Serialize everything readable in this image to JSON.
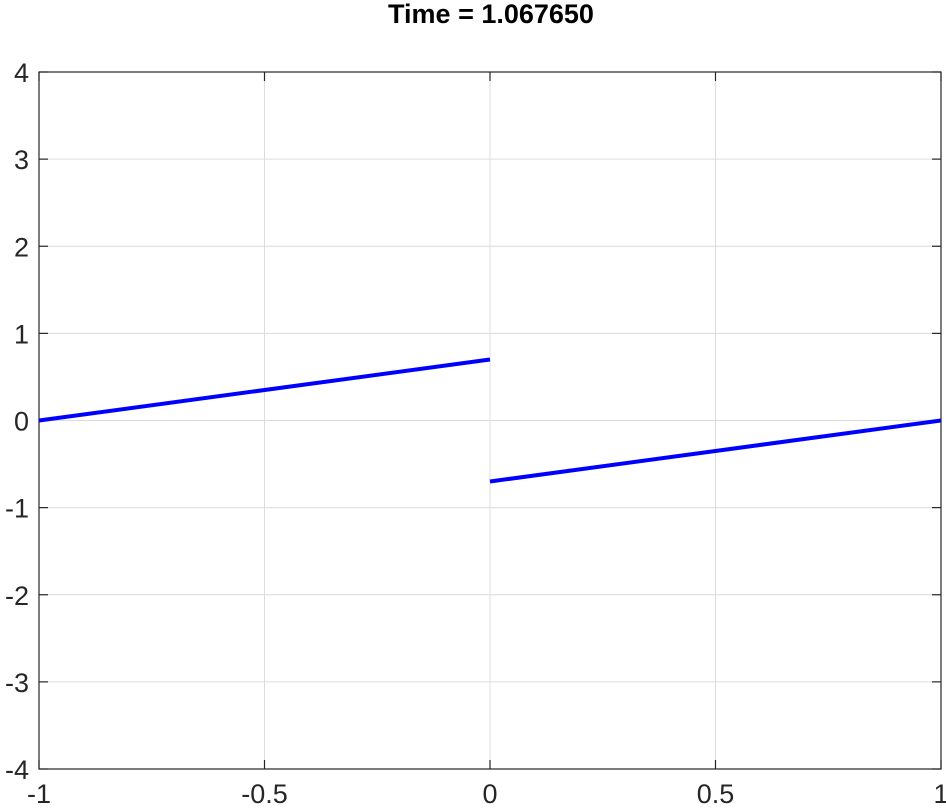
{
  "chart_data": {
    "type": "line",
    "title": "Time = 1.067650",
    "xlabel": "",
    "ylabel": "",
    "xlim": [
      -1,
      1
    ],
    "ylim": [
      -4,
      4
    ],
    "xticks": [
      -1,
      -0.5,
      0,
      0.5,
      1
    ],
    "xtick_labels": [
      "-1",
      "-0.5",
      "0",
      "0.5",
      "1"
    ],
    "yticks": [
      -4,
      -3,
      -2,
      -1,
      0,
      1,
      2,
      3,
      4
    ],
    "ytick_labels": [
      "-4",
      "-3",
      "-2",
      "-1",
      "0",
      "1",
      "2",
      "3",
      "4"
    ],
    "grid": true,
    "series": [
      {
        "color": "#0000ff",
        "segments": [
          {
            "x": [
              -1,
              0
            ],
            "y": [
              0,
              0.7
            ]
          },
          {
            "x": [
              0,
              1
            ],
            "y": [
              -0.7,
              0
            ]
          }
        ]
      }
    ]
  }
}
